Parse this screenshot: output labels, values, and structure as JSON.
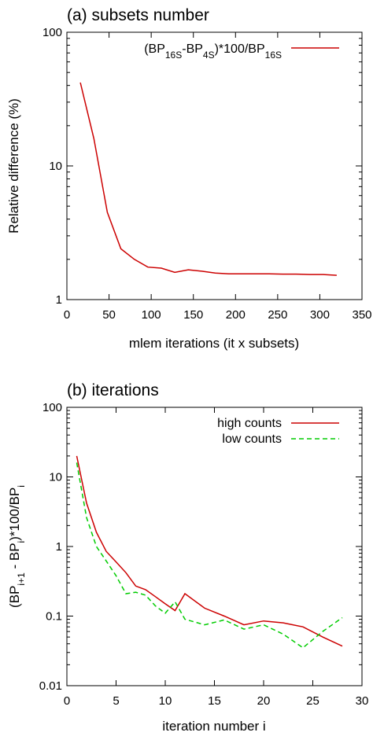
{
  "chart_data": [
    {
      "type": "line",
      "title": "(a) subsets number",
      "xlabel": "mlem iterations (it x subsets)",
      "ylabel": "Relative difference (%)",
      "xlim": [
        0,
        350
      ],
      "ylim": [
        1,
        100
      ],
      "yscale": "log",
      "xticks": [
        0,
        50,
        100,
        150,
        200,
        250,
        300,
        350
      ],
      "yticks": [
        1,
        10,
        100
      ],
      "legend": "top-right",
      "series": [
        {
          "name_parts": [
            {
              "t": "(BP",
              "sub": false
            },
            {
              "t": "16S",
              "sub": true
            },
            {
              "t": "-BP",
              "sub": false
            },
            {
              "t": "4S",
              "sub": true
            },
            {
              "t": ")*100/BP",
              "sub": false
            },
            {
              "t": "16S",
              "sub": true
            }
          ],
          "color": "#cc0000",
          "dash": "solid",
          "x": [
            16,
            32,
            48,
            64,
            80,
            96,
            112,
            128,
            144,
            160,
            176,
            192,
            208,
            224,
            240,
            256,
            272,
            288,
            304,
            320
          ],
          "y": [
            42,
            16,
            4.5,
            2.4,
            2.0,
            1.75,
            1.72,
            1.6,
            1.67,
            1.63,
            1.58,
            1.56,
            1.56,
            1.56,
            1.56,
            1.55,
            1.55,
            1.54,
            1.54,
            1.52
          ]
        }
      ]
    },
    {
      "type": "line",
      "title": "(b) iterations",
      "xlabel": "iteration number i",
      "ylabel_parts": [
        {
          "t": "(BP",
          "sub": false
        },
        {
          "t": "i+1",
          "sub": true
        },
        {
          "t": " - BP",
          "sub": false
        },
        {
          "t": "i",
          "sub": true
        },
        {
          "t": ")*100/BP",
          "sub": false
        },
        {
          "t": "i",
          "sub": true
        }
      ],
      "xlim": [
        0,
        30
      ],
      "ylim": [
        0.01,
        100
      ],
      "yscale": "log",
      "xticks": [
        0,
        5,
        10,
        15,
        20,
        25,
        30
      ],
      "yticks": [
        0.01,
        0.1,
        1,
        10,
        100
      ],
      "legend": "top-right",
      "series": [
        {
          "name": "high counts",
          "color": "#cc0000",
          "dash": "solid",
          "x": [
            1,
            2,
            3,
            4,
            5,
            6,
            7,
            8,
            9,
            10,
            11,
            12,
            14,
            16,
            18,
            20,
            22,
            24,
            26,
            28
          ],
          "y": [
            20,
            4.2,
            1.6,
            0.85,
            0.6,
            0.42,
            0.27,
            0.24,
            0.19,
            0.15,
            0.12,
            0.21,
            0.13,
            0.1,
            0.075,
            0.085,
            0.08,
            0.07,
            0.05,
            0.037
          ]
        },
        {
          "name": "low counts",
          "color": "#00cc00",
          "dash": "dashed",
          "x": [
            1,
            2,
            3,
            4,
            5,
            6,
            7,
            8,
            9,
            10,
            11,
            12,
            14,
            16,
            18,
            20,
            22,
            24,
            26,
            28
          ],
          "y": [
            16,
            2.6,
            1.0,
            0.62,
            0.38,
            0.21,
            0.22,
            0.2,
            0.14,
            0.11,
            0.16,
            0.09,
            0.075,
            0.088,
            0.065,
            0.075,
            0.055,
            0.035,
            0.06,
            0.095
          ]
        }
      ]
    }
  ]
}
